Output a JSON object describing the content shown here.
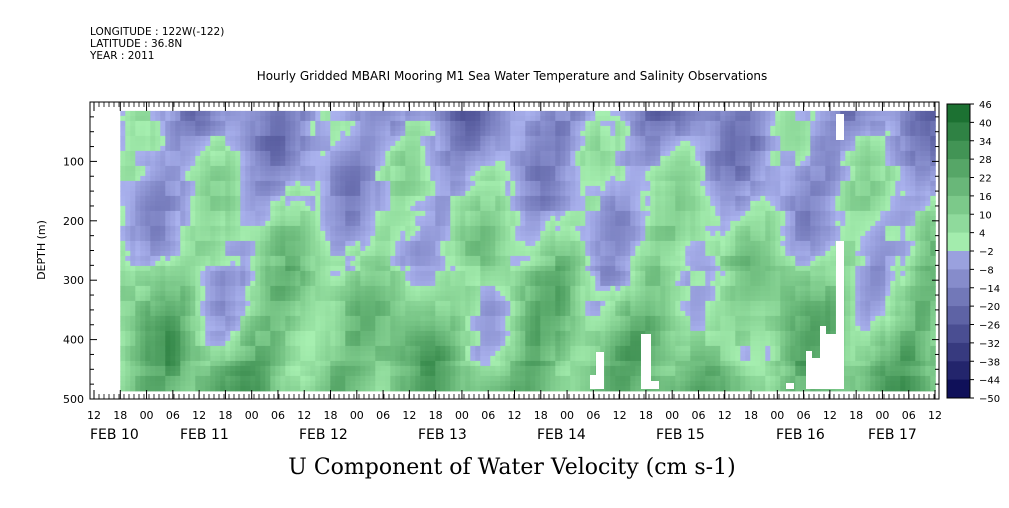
{
  "header": {
    "longitude": "LONGITUDE : 122W(-122)",
    "latitude": "LATITUDE : 36.8N",
    "year": "YEAR : 2011",
    "title": "Hourly Gridded MBARI Mooring M1 Sea Water Temperature and Salinity Observations"
  },
  "chart_data": {
    "type": "heatmap",
    "title": "Hourly Gridded MBARI Mooring M1 Sea Water Temperature and Salinity Observations",
    "variable_label": "U Component of Water Velocity (cm s-1)",
    "ylabel": "DEPTH (m)",
    "y_range": [
      500,
      0
    ],
    "y_data_range": [
      15,
      485
    ],
    "y_ticks": [
      100,
      200,
      300,
      400,
      500
    ],
    "x_range_hours_label": "FEB 10 12:00 to FEB 17 12:00, 2011",
    "x_ticks": [
      "12",
      "18",
      "00",
      "06",
      "12",
      "18",
      "00",
      "06",
      "12",
      "18",
      "00",
      "06",
      "12",
      "18",
      "00",
      "06",
      "12",
      "18",
      "00",
      "06",
      "12",
      "18",
      "00",
      "06",
      "12",
      "18",
      "00",
      "06",
      "12",
      "18",
      "00",
      "06",
      "12"
    ],
    "day_labels": [
      "FEB 10",
      "FEB 11",
      "FEB 12",
      "FEB 13",
      "FEB 14",
      "FEB 15",
      "FEB 16",
      "FEB 17"
    ],
    "colorbar": {
      "levels": [
        46,
        40,
        34,
        28,
        22,
        16,
        10,
        4,
        -2,
        -8,
        -14,
        -20,
        -26,
        -32,
        -38,
        -44,
        -50
      ],
      "range": [
        -50,
        50
      ],
      "low_color": "#05064f",
      "mid_low_color": "#aab2ee",
      "mid_high_color": "#a6efb0",
      "high_color": "#055c1e"
    },
    "data_start": "FEB 10 18:00",
    "pattern": "negative (blue) velocities in upper ~0-250 m, positive (green) velocities below ~250 m with strongest values near 300-450 m; white gaps near FEB 14 18:00, FEB 15 03:00, FEB 16 12:00-18:00"
  }
}
